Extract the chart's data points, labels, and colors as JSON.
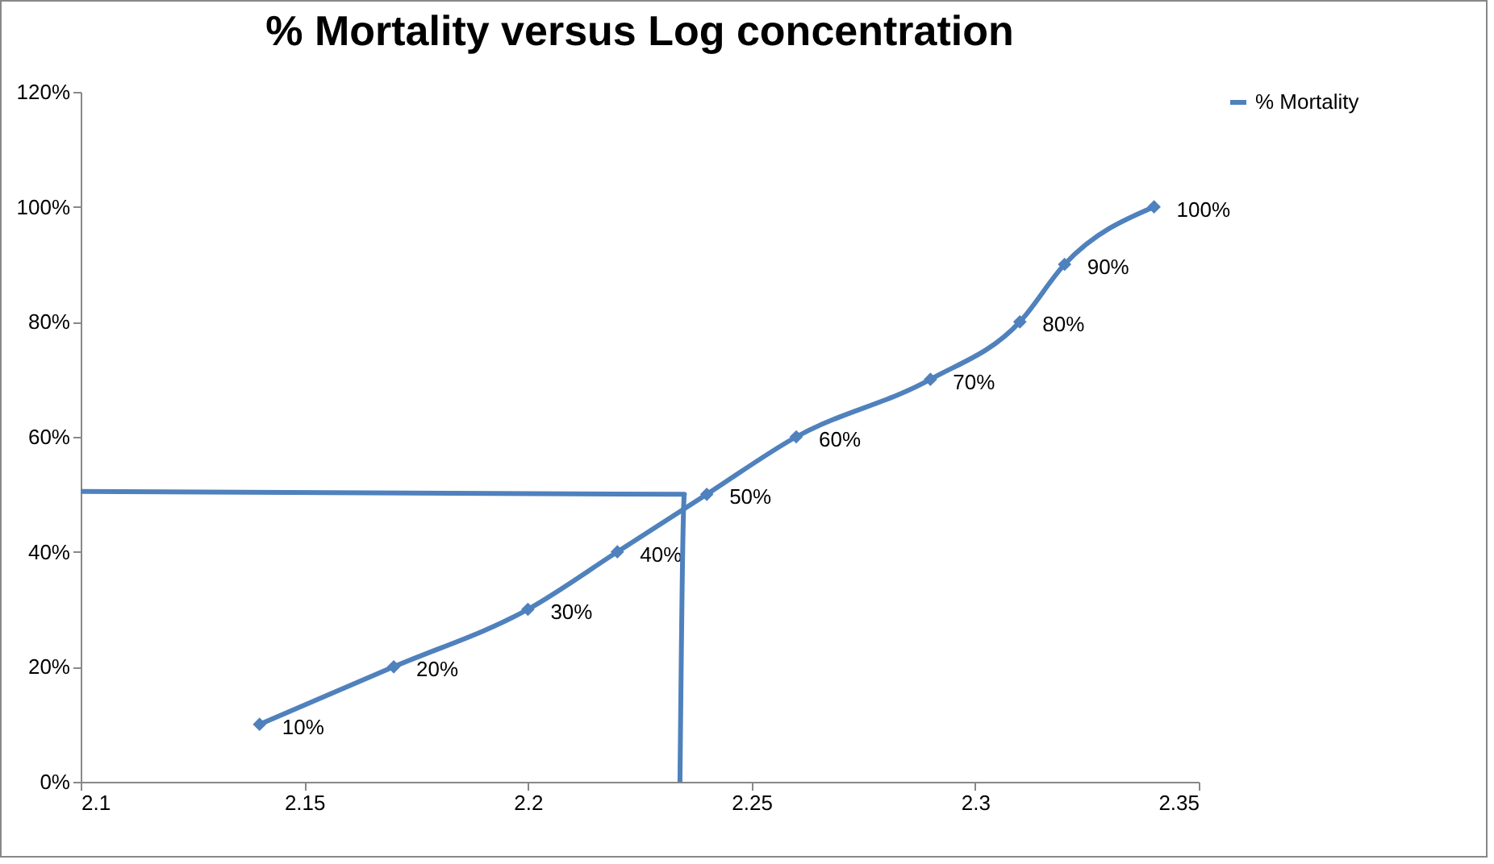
{
  "chart_data": {
    "type": "line",
    "title": "% Mortality versus Log concentration",
    "legend": "right",
    "marker": "diamond",
    "line_style": "solid",
    "grid": false,
    "xlim": [
      2.1,
      2.35
    ],
    "xticks": [
      2.1,
      2.15,
      2.2,
      2.25,
      2.3,
      2.35
    ],
    "ylim": [
      0,
      120
    ],
    "yticks": [
      {
        "value": 0,
        "label": "0%"
      },
      {
        "value": 20,
        "label": "20%"
      },
      {
        "value": 40,
        "label": "40%"
      },
      {
        "value": 60,
        "label": "60%"
      },
      {
        "value": 80,
        "label": "80%"
      },
      {
        "value": 100,
        "label": "100%"
      },
      {
        "value": 120,
        "label": "120%"
      }
    ],
    "series": [
      {
        "name": "% Mortality",
        "color": "#4f81bd",
        "x": [
          2.14,
          2.17,
          2.2,
          2.22,
          2.24,
          2.26,
          2.29,
          2.31,
          2.32,
          2.34
        ],
        "values": [
          10,
          20,
          30,
          40,
          50,
          60,
          70,
          80,
          90,
          100
        ],
        "value_labels": [
          "10%",
          "20%",
          "30%",
          "40%",
          "50%",
          "60%",
          "70%",
          "80%",
          "90%",
          "100%"
        ]
      },
      {
        "type": "line",
        "color": "#4f81bd",
        "marker": "none",
        "x": [
          2.1,
          2.235,
          2.234
        ],
        "values": [
          50.5,
          50,
          0
        ]
      }
    ]
  }
}
